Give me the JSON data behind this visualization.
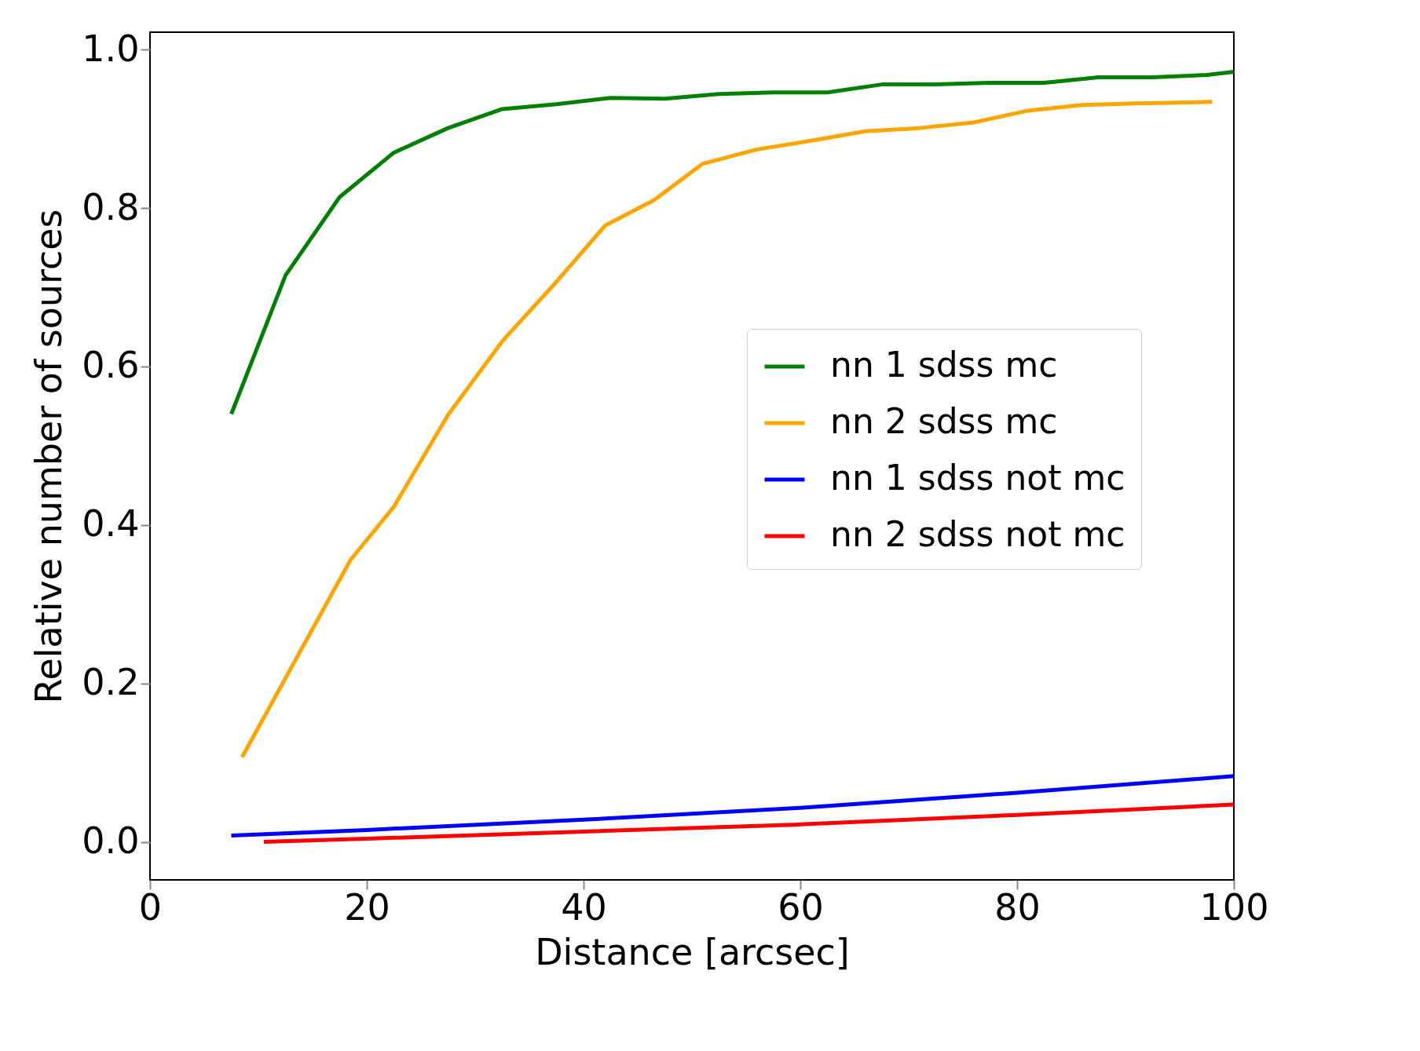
{
  "chart_data": {
    "type": "line",
    "xlabel": "Distance [arcsec]",
    "ylabel": "Relative number of sources",
    "xlim": [
      0,
      100
    ],
    "ylim": [
      -0.048,
      1.022
    ],
    "xticks": [
      0,
      20,
      40,
      60,
      80,
      100
    ],
    "yticks": [
      {
        "value": 0,
        "label": "0.0"
      },
      0.2,
      0.4,
      0.6,
      0.8,
      {
        "value": 1,
        "label": "1.0"
      }
    ],
    "grid": false,
    "legend": "center right",
    "marker": "none",
    "line_style": "solid",
    "series": [
      {
        "name": "nn 1 sdss mc",
        "color": "#008000",
        "x": [
          7.5,
          12.5,
          17.5,
          22.5,
          27.5,
          32.5,
          37.5,
          42.5,
          47.5,
          52.5,
          57.5,
          62.5,
          67.5,
          72.5,
          77.5,
          82.5,
          87.5,
          92.5,
          97.5,
          100
        ],
        "values": [
          0.54,
          0.715,
          0.814,
          0.87,
          0.901,
          0.925,
          0.931,
          0.939,
          0.938,
          0.944,
          0.946,
          0.946,
          0.956,
          0.956,
          0.958,
          0.958,
          0.965,
          0.965,
          0.968,
          0.972
        ]
      },
      {
        "name": "nn 2 sdss mc",
        "color": "#ffa500",
        "x": [
          8.5,
          18.5,
          22.5,
          27.5,
          32.5,
          37.5,
          42,
          46.5,
          51,
          56,
          61,
          66,
          71,
          76,
          81,
          86,
          91,
          98
        ],
        "values": [
          0.107,
          0.356,
          0.423,
          0.539,
          0.632,
          0.707,
          0.778,
          0.81,
          0.856,
          0.874,
          0.885,
          0.897,
          0.901,
          0.908,
          0.923,
          0.93,
          0.932,
          0.934
        ]
      },
      {
        "name": "nn 1 sdss not mc",
        "color": "#0000ff",
        "x": [
          7.5,
          20,
          40,
          60,
          80,
          100
        ],
        "values": [
          0.008,
          0.015,
          0.028,
          0.043,
          0.062,
          0.083
        ]
      },
      {
        "name": "nn 2 sdss not mc",
        "color": "#ff0000",
        "x": [
          10.5,
          20,
          40,
          60,
          80,
          100
        ],
        "values": [
          0.0,
          0.004,
          0.013,
          0.022,
          0.034,
          0.047
        ]
      }
    ]
  }
}
